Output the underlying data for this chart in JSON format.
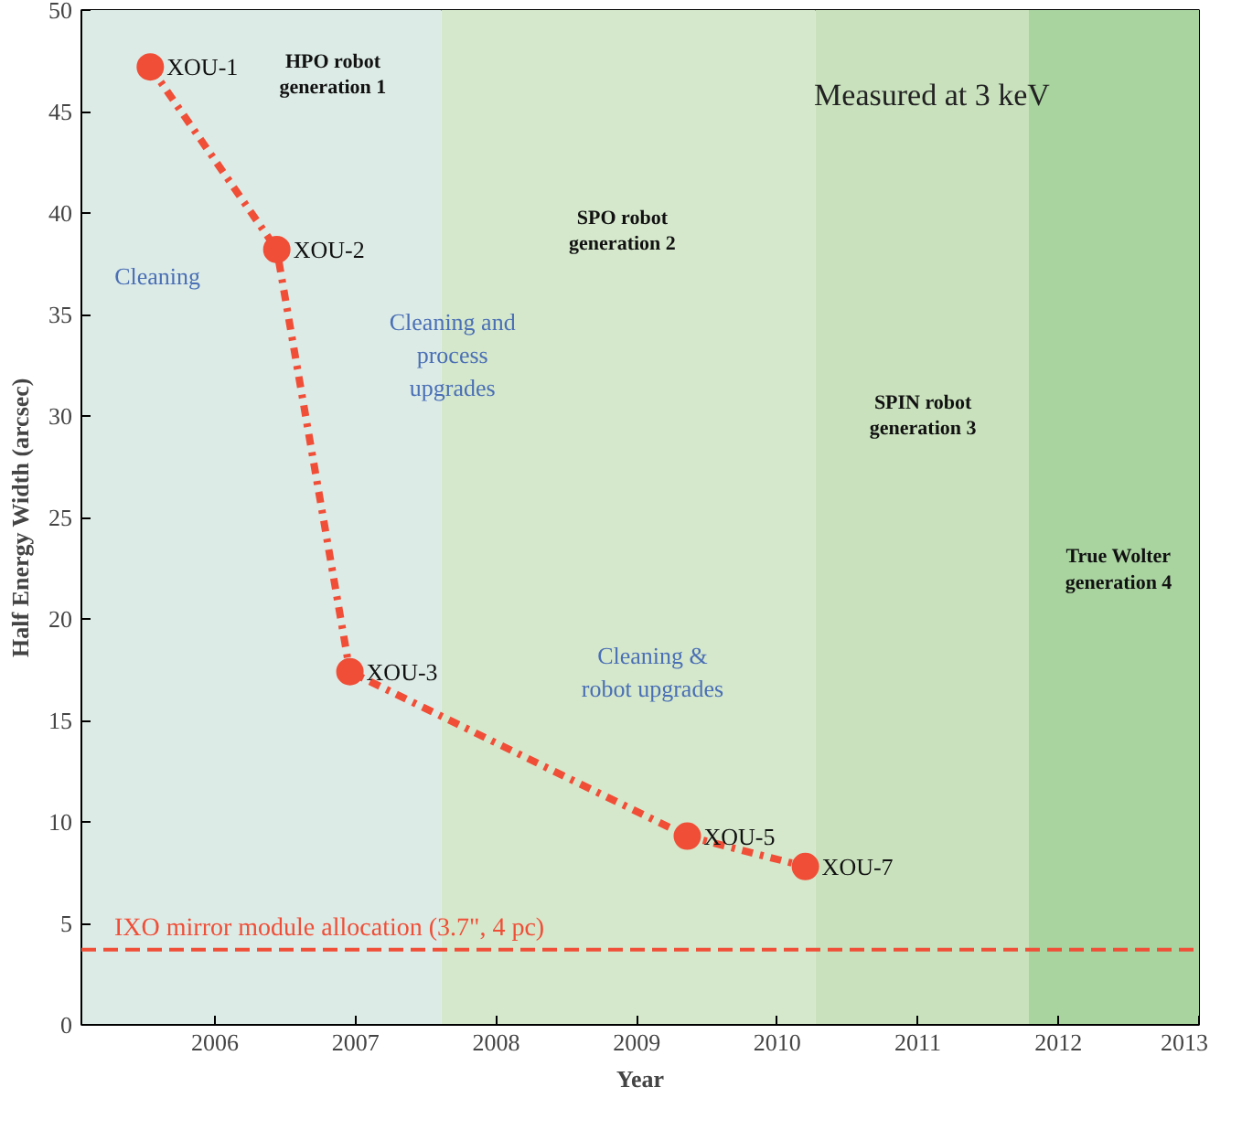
{
  "chart_data": {
    "type": "line",
    "xlabel": "Year",
    "ylabel": "Half Energy Width (arcsec)",
    "x": [
      2005.54,
      2006.44,
      2006.96,
      2009.36,
      2010.2
    ],
    "series": [
      {
        "color": "#f04e37",
        "values": [
          47.2,
          38.2,
          17.4,
          9.3,
          7.8
        ]
      }
    ],
    "marker": "circle",
    "line_style": "dashed",
    "xlim": [
      2005.05,
      2013
    ],
    "xticks": [
      2006,
      2007,
      2008,
      2009,
      2010,
      2011,
      2012,
      2013
    ],
    "ylim": [
      0,
      50
    ],
    "yticks": [
      0,
      5,
      10,
      15,
      20,
      25,
      30,
      35,
      40,
      45,
      50
    ],
    "grid": false,
    "bands": [
      {
        "axis": "x",
        "from": 2005.05,
        "to": 2007.61,
        "color": "#dcebe6",
        "label": "HPO robot\ngeneration 1"
      },
      {
        "axis": "x",
        "from": 2007.61,
        "to": 2010.27,
        "color": "#d5e8cc",
        "label": "SPO robot\ngeneration 2"
      },
      {
        "axis": "x",
        "from": 2010.27,
        "to": 2011.79,
        "color": "#c9e2bd",
        "label": "SPIN robot\ngeneration 3"
      },
      {
        "axis": "x",
        "from": 2011.79,
        "to": 2013,
        "color": "#a9d4a0",
        "label": "True Wolter\ngeneration 4"
      }
    ],
    "ref_lines": [
      {
        "axis": "y",
        "value": 3.7,
        "label": "IXO mirror module allocation (3.7\", 4 pc)",
        "color": "#f04e37",
        "line_style": "dashed"
      }
    ],
    "annotations": [
      {
        "text": "XOU-1",
        "x": 2005.54,
        "y": 47.2
      },
      {
        "text": "XOU-2",
        "x": 2006.44,
        "y": 38.2
      },
      {
        "text": "XOU-3",
        "x": 2006.96,
        "y": 17.4
      },
      {
        "text": "XOU-5",
        "x": 2009.36,
        "y": 9.3
      },
      {
        "text": "XOU-7",
        "x": 2010.2,
        "y": 7.8
      },
      "Measured at 3 keV",
      "Cleaning",
      "Cleaning and\nprocess\nupgrades",
      "Cleaning &\nrobot upgrades"
    ]
  }
}
